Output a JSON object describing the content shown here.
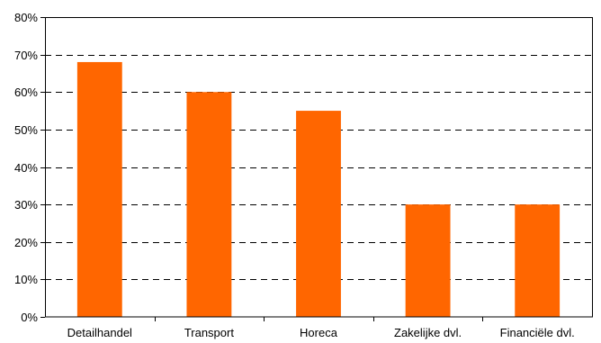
{
  "chart_data": {
    "type": "bar",
    "title": "",
    "xlabel": "",
    "ylabel": "",
    "categories": [
      "Detailhandel",
      "Transport",
      "Horeca",
      "Zakelijke dvl.",
      "Financiële dvl."
    ],
    "values": [
      68,
      60,
      55,
      30,
      30
    ],
    "ylim": [
      0,
      80
    ],
    "yticks": [
      0,
      10,
      20,
      30,
      40,
      50,
      60,
      70,
      80
    ],
    "ytick_labels": [
      "0%",
      "10%",
      "20%",
      "30%",
      "40%",
      "50%",
      "60%",
      "70%",
      "80%"
    ],
    "grid": "horizontal dashed",
    "legend": "none",
    "bar_color": "#FF6600"
  }
}
